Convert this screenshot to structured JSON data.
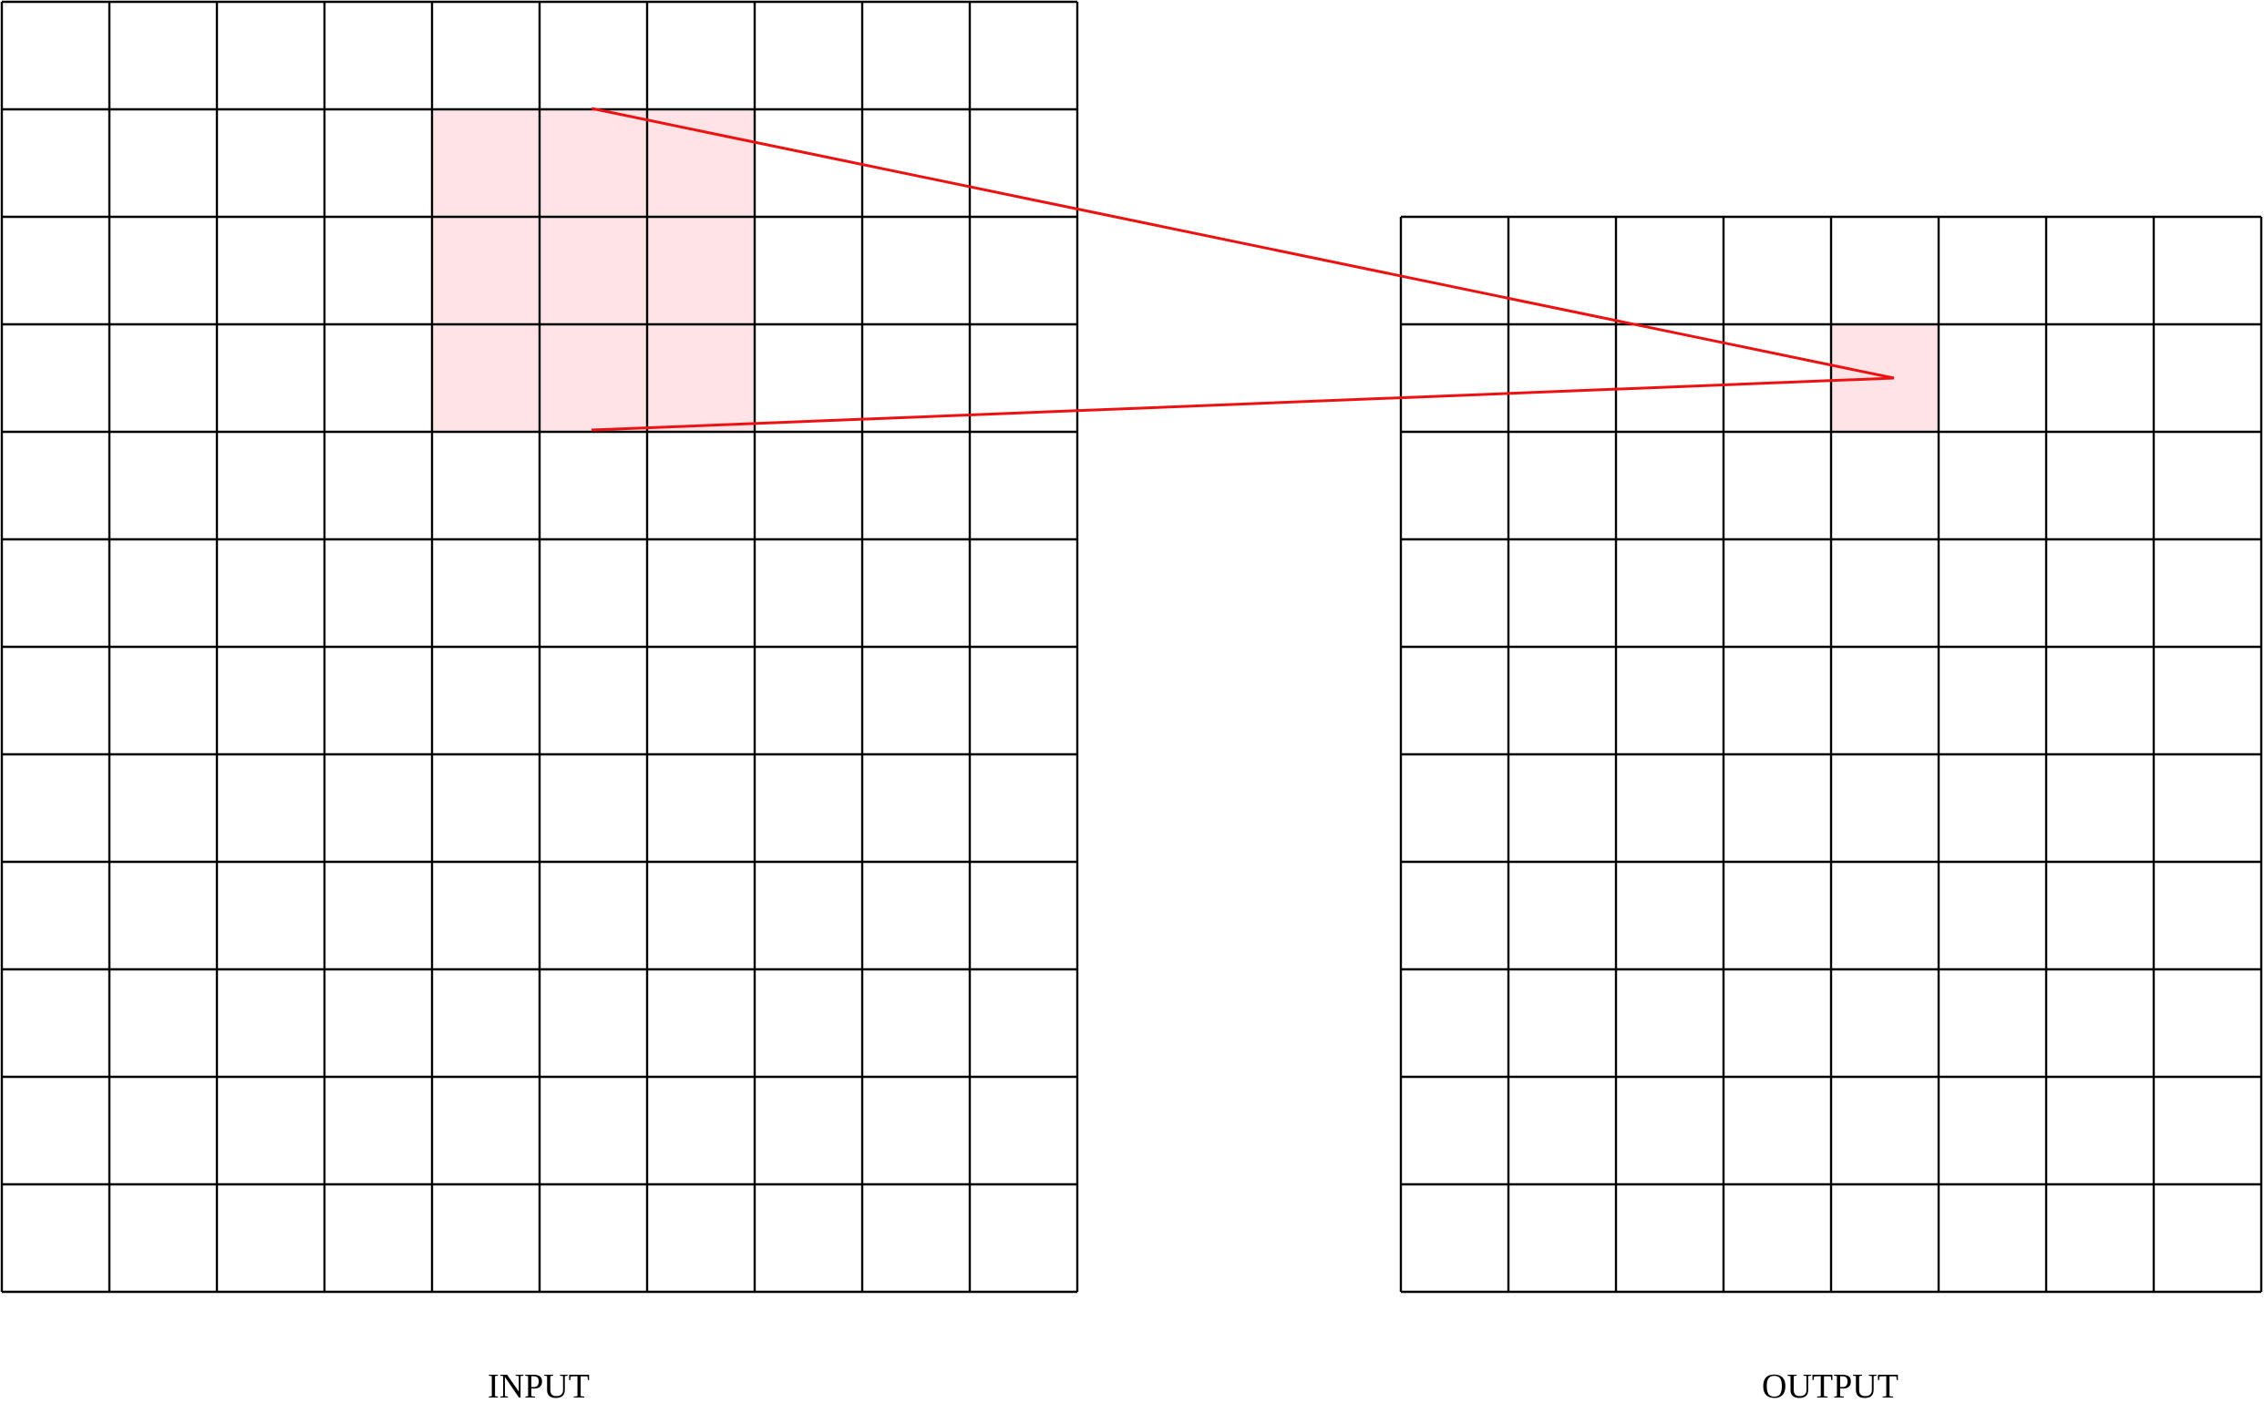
{
  "input": {
    "label": "INPUT"
  },
  "output": {
    "label": "OUTPUT"
  }
}
